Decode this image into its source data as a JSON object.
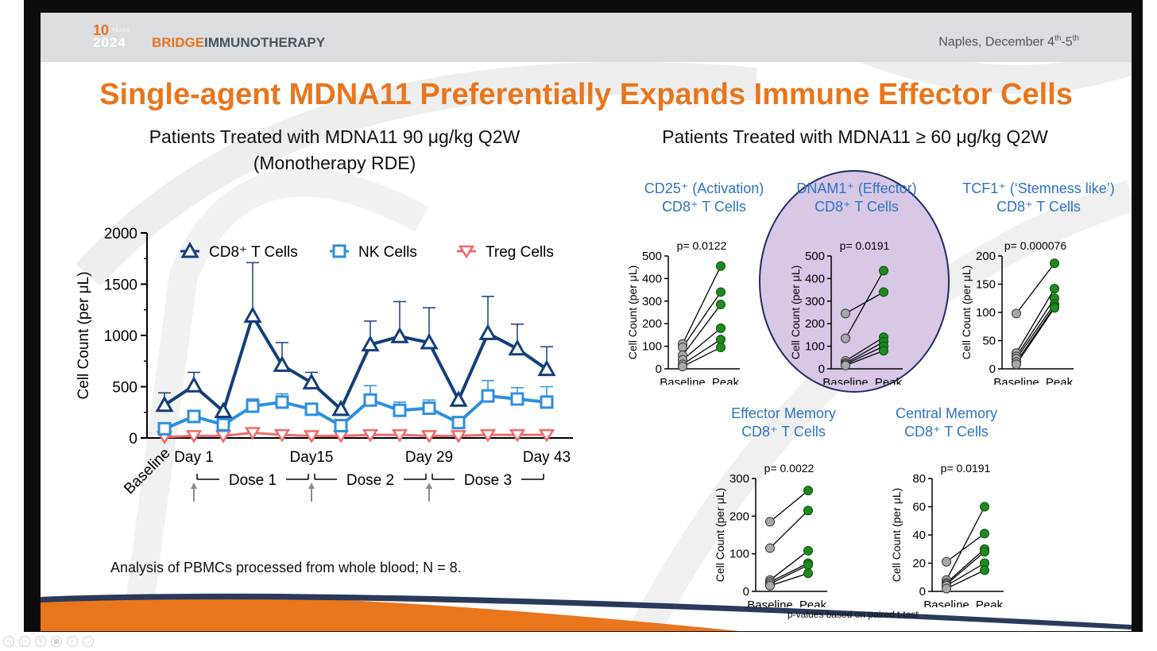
{
  "header": {
    "logo_ten": "10",
    "logo_years": "YEARS",
    "logo_year": "2024",
    "logo_bridge": "BRIDGE",
    "logo_immuno": "IMMUNOTHERAPY",
    "location_text": "Naples, December 4",
    "location_sup1": "th",
    "location_mid": "-5",
    "location_sup2": "th"
  },
  "title": "Single-agent MDNA11 Preferentially Expands Immune Effector Cells",
  "left_subtitle_line1": "Patients Treated with MDNA11 90 μg/kg Q2W",
  "left_subtitle_line2": "(Monotherapy RDE)",
  "right_subtitle": "Patients Treated with MDNA11 ≥ 60 μg/kg Q2W",
  "footnote": "Analysis of PBMCs processed from whole blood; N = 8.",
  "pvalue_note": "p-values based on paired t-test",
  "colors": {
    "orange": "#e8761d",
    "cd8": "#123f7a",
    "nk": "#2d8fe0",
    "treg": "#f06a6a",
    "blue_label": "#2d74c4",
    "green": "#1e8a1e",
    "gray": "#a8a8a8",
    "purple": "#d8c8e6"
  },
  "chart_data": [
    {
      "type": "line",
      "ylabel": "Cell Count (per μL)",
      "ylim": [
        0,
        2000
      ],
      "yticks": [
        0,
        500,
        1000,
        1500,
        2000
      ],
      "x_tick_labels": [
        "Baseline",
        "Day 1",
        "Day15",
        "Day 29",
        "Day 43"
      ],
      "x_tick_positions": [
        0,
        1,
        5,
        9,
        13
      ],
      "doses": [
        "Dose 1",
        "Dose 2",
        "Dose 3"
      ],
      "x": [
        0,
        1,
        2,
        3,
        4,
        5,
        6,
        7,
        8,
        9,
        10,
        11,
        12,
        13
      ],
      "series": [
        {
          "name": "CD8⁺ T Cells",
          "marker": "triangle-up",
          "values": [
            320,
            510,
            260,
            1190,
            710,
            540,
            280,
            910,
            990,
            930,
            370,
            1020,
            870,
            670
          ],
          "errors": [
            120,
            130,
            0,
            520,
            220,
            100,
            0,
            230,
            340,
            340,
            0,
            360,
            240,
            220
          ]
        },
        {
          "name": "NK Cells",
          "marker": "square",
          "values": [
            90,
            210,
            130,
            310,
            350,
            280,
            120,
            370,
            270,
            290,
            150,
            410,
            380,
            350
          ],
          "errors": [
            0,
            0,
            0,
            70,
            80,
            0,
            0,
            140,
            80,
            80,
            0,
            150,
            110,
            150
          ]
        },
        {
          "name": "Treg Cells",
          "marker": "triangle-down",
          "values": [
            10,
            20,
            20,
            50,
            30,
            20,
            20,
            30,
            30,
            20,
            20,
            30,
            30,
            30
          ],
          "errors": [
            0,
            0,
            0,
            0,
            0,
            0,
            0,
            0,
            0,
            0,
            0,
            0,
            0,
            0
          ]
        }
      ]
    },
    {
      "type": "scatter",
      "title_line1": "CD25⁺ (Activation)",
      "title_line2": "CD8⁺ T Cells",
      "pvalue": "p= 0.0122",
      "ylabel": "Cell Count (per μL)",
      "ylim": [
        0,
        500
      ],
      "yticks": [
        0,
        100,
        200,
        300,
        400,
        500
      ],
      "categories": [
        "Baseline",
        "Peak"
      ],
      "pairs": [
        [
          110,
          455
        ],
        [
          95,
          340
        ],
        [
          60,
          285
        ],
        [
          40,
          180
        ],
        [
          20,
          130
        ],
        [
          10,
          95
        ]
      ]
    },
    {
      "type": "scatter",
      "title_line1": "DNAM1⁺ (Effector)",
      "title_line2": "CD8⁺ T Cells",
      "pvalue": "p= 0.0191",
      "ylabel": "Cell Count (per μL)",
      "ylim": [
        0,
        500
      ],
      "yticks": [
        0,
        100,
        200,
        300,
        400,
        500
      ],
      "categories": [
        "Baseline",
        "Peak"
      ],
      "pairs": [
        [
          245,
          340
        ],
        [
          135,
          435
        ],
        [
          35,
          140
        ],
        [
          25,
          120
        ],
        [
          20,
          100
        ],
        [
          15,
          80
        ]
      ]
    },
    {
      "type": "scatter",
      "title_line1": "TCF1⁺ (‘Stemness like’)",
      "title_line2": "CD8⁺ T Cells",
      "pvalue": "p= 0.000076",
      "ylabel": "Cell Count (per μL)",
      "ylim": [
        0,
        200
      ],
      "yticks": [
        0,
        50,
        100,
        150,
        200
      ],
      "categories": [
        "Baseline",
        "Peak"
      ],
      "pairs": [
        [
          98,
          187
        ],
        [
          28,
          142
        ],
        [
          22,
          125
        ],
        [
          18,
          115
        ],
        [
          12,
          110
        ],
        [
          8,
          108
        ]
      ]
    },
    {
      "type": "scatter",
      "title_line1": "Effector Memory",
      "title_line2": "CD8⁺ T Cells",
      "pvalue": "p= 0.0022",
      "ylabel": "Cell Count (per μL)",
      "ylim": [
        0,
        300
      ],
      "yticks": [
        0,
        100,
        200,
        300
      ],
      "categories": [
        "Baseline",
        "Peak"
      ],
      "pairs": [
        [
          185,
          268
        ],
        [
          115,
          215
        ],
        [
          30,
          108
        ],
        [
          25,
          75
        ],
        [
          20,
          70
        ],
        [
          15,
          48
        ]
      ]
    },
    {
      "type": "scatter",
      "title_line1": "Central Memory",
      "title_line2": "CD8⁺ T Cells",
      "pvalue": "p= 0.0191",
      "ylabel": "Cell Count (per μL)",
      "ylim": [
        0,
        80
      ],
      "yticks": [
        0,
        20,
        40,
        60,
        80
      ],
      "categories": [
        "Baseline",
        "Peak"
      ],
      "pairs": [
        [
          21,
          41
        ],
        [
          8,
          60
        ],
        [
          6,
          30
        ],
        [
          5,
          28
        ],
        [
          4,
          20
        ],
        [
          2,
          15
        ]
      ]
    }
  ]
}
